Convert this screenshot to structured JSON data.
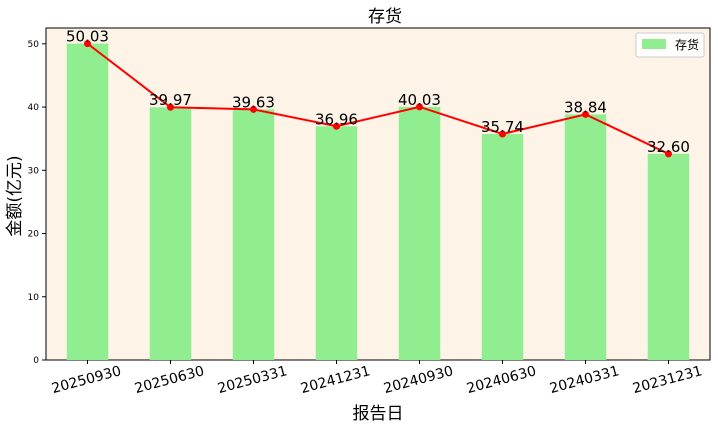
{
  "chart_data": {
    "type": "bar",
    "title": "存货",
    "xlabel": "报告日",
    "ylabel": "金额(亿元)",
    "categories": [
      "20250930",
      "20250630",
      "20250331",
      "20241231",
      "20240930",
      "20240630",
      "20240331",
      "20231231"
    ],
    "series": [
      {
        "name": "存货",
        "type": "bar",
        "values": [
          50.03,
          39.97,
          39.63,
          36.96,
          40.03,
          35.74,
          38.84,
          32.6
        ]
      }
    ],
    "line_values": [
      50.03,
      39.97,
      39.63,
      36.96,
      40.03,
      35.74,
      38.84,
      32.6
    ],
    "data_labels": [
      "50.03",
      "39.97",
      "39.63",
      "36.96",
      "40.03",
      "35.74",
      "38.84",
      "32.60"
    ],
    "ylim": [
      0,
      52.5
    ],
    "yticks": [
      0,
      10,
      20,
      30,
      40,
      50
    ],
    "grid": false,
    "legend_position": "top-right",
    "colors": {
      "bar": "#90ee90",
      "line": "#ff0000",
      "background": "#fdf3e6"
    }
  }
}
